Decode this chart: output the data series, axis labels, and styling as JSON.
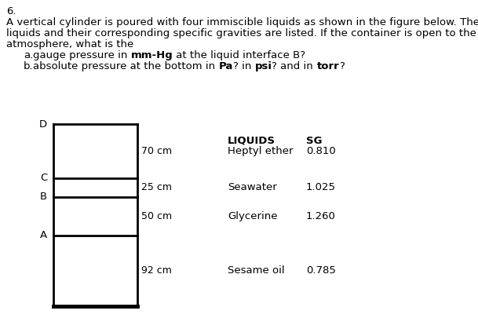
{
  "problem_number": "6.",
  "text_lines": [
    "A vertical cylinder is poured with four immiscible liquids as shown in the figure below. The",
    "liquids and their corresponding specific gravities are listed. If the container is open to the",
    "atmosphere, what is the"
  ],
  "qa_label": "a.",
  "qa_prefix": "   gauge pressure in ",
  "qa_bold": "mm-Hg",
  "qa_suffix": " at the liquid interface B?",
  "qb_label": "b.",
  "qb_prefix": "   absolute pressure at the bottom in ",
  "qb_bold1": "Pa",
  "qb_mid1": "? in ",
  "qb_bold2": "psi",
  "qb_mid2": "? and in ",
  "qb_bold3": "torr",
  "qb_suffix": "?",
  "cylinder": {
    "segments_cm": [
      70,
      25,
      50,
      92
    ],
    "labels": [
      "D",
      "C",
      "B",
      "A"
    ],
    "height_labels": [
      "70 cm",
      "25 cm",
      "50 cm",
      "92 cm"
    ]
  },
  "table_header": [
    "LIQUIDS",
    "SG"
  ],
  "table_rows": [
    [
      "Heptyl ether",
      "0.810"
    ],
    [
      "Seawater",
      "1.025"
    ],
    [
      "Glycerine",
      "1.260"
    ],
    [
      "Sesame oil",
      "0.785"
    ]
  ],
  "bg_color": "#ffffff",
  "text_color": "#000000"
}
